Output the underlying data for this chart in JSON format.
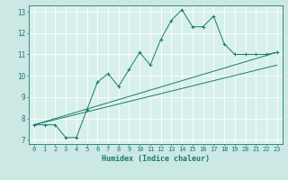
{
  "xlabel": "Humidex (Indice chaleur)",
  "bg_color": "#cce8e4",
  "plot_bg_color": "#d8f0ec",
  "line_color": "#1a7a6e",
  "grid_color": "#ffffff",
  "xlim": [
    -0.5,
    23.5
  ],
  "ylim": [
    6.8,
    13.3
  ],
  "xticks": [
    0,
    1,
    2,
    3,
    4,
    5,
    6,
    7,
    8,
    9,
    10,
    11,
    12,
    13,
    14,
    15,
    16,
    17,
    18,
    19,
    20,
    21,
    22,
    23
  ],
  "yticks": [
    7,
    8,
    9,
    10,
    11,
    12,
    13
  ],
  "line1_x": [
    0,
    1,
    2,
    3,
    4,
    5,
    6,
    7,
    8,
    9,
    10,
    11,
    12,
    13,
    14,
    15,
    16,
    17,
    18,
    19,
    20,
    21,
    22,
    23
  ],
  "line1_y": [
    7.7,
    7.7,
    7.7,
    7.1,
    7.1,
    8.4,
    9.7,
    10.1,
    9.5,
    10.3,
    11.1,
    10.5,
    11.7,
    12.6,
    13.1,
    12.3,
    12.3,
    12.8,
    11.5,
    11.0,
    11.0,
    11.0,
    11.0,
    11.1
  ],
  "line2_x": [
    0,
    23
  ],
  "line2_y": [
    7.7,
    11.1
  ],
  "line3_x": [
    0,
    23
  ],
  "line3_y": [
    7.7,
    10.5
  ]
}
